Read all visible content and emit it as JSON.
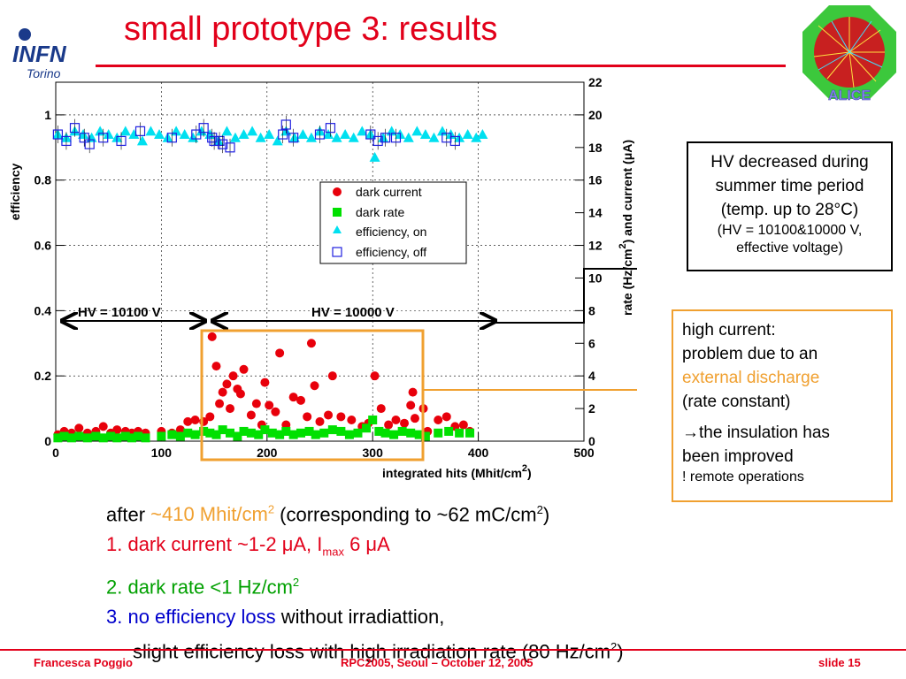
{
  "slide": {
    "title": "small prototype 3: results",
    "footer_left": "Francesca Poggio",
    "footer_center": "RPC2005, Seoul – October 12, 2005",
    "footer_right": "slide 15",
    "logo_infn_text": "INFN",
    "logo_infn_sub": "Torino",
    "logo_alice_text": "ALICE"
  },
  "boxes": {
    "hv_note_line1": "HV decreased during",
    "hv_note_line2": "summer time period",
    "hv_note_line3": "(temp. up to 28°C)",
    "hv_note_line4": "(HV = 10100&10000 V,",
    "hv_note_line5": "effective voltage)",
    "current_line1": "high current:",
    "current_line2": "problem due to an",
    "current_line3": "external discharge",
    "current_line4": "(rate constant)",
    "current_line5": "→the insulation has",
    "current_line6": "been improved",
    "current_line7": "! remote operations"
  },
  "bullets": {
    "after_prefix": "after ",
    "after_value": "~410 Mhit/cm",
    "after_value_sup": "2",
    "after_suffix": " (corresponding to ~62 mC/cm",
    "after_suffix_sup": "2",
    "after_end": ")",
    "b1_prefix": "1. dark current ~1-2 μA, I",
    "b1_sub": "max",
    "b1_suffix": " 6 μA",
    "b2_text": "2. dark rate <1 Hz/cm",
    "b2_sup": "2",
    "b3_colored": "3. no efficiency loss",
    "b3_rest": " without irradiattion,",
    "b4_text": "slight efficiency loss with high irradiation rate (80 Hz/cm",
    "b4_sup": "2",
    "b4_end": ")"
  },
  "chart_data": {
    "type": "scatter",
    "xlabel": "integrated hits (Mhit/cm",
    "xlabel_sup": "2",
    "xlabel_end": ")",
    "ylabel_left": "efficiency",
    "ylabel_right": "rate (Hz/cm",
    "ylabel_right_sup": "2",
    "ylabel_right_end": ") and current (μA)",
    "xlim": [
      0,
      500
    ],
    "ylim_left": [
      0,
      1.1
    ],
    "ylim_right": [
      0,
      22
    ],
    "x_ticks": [
      "0",
      "100",
      "200",
      "300",
      "400",
      "500"
    ],
    "y_left_ticks": [
      "0",
      "0.2",
      "0.4",
      "0.6",
      "0.8",
      "1"
    ],
    "y_right_ticks": [
      "0",
      "2",
      "4",
      "6",
      "8",
      "10",
      "12",
      "14",
      "16",
      "18",
      "20",
      "22"
    ],
    "annotations": {
      "hv1": "HV = 10100 V",
      "hv2": "HV = 10000 V"
    },
    "legend": {
      "placement": "center-right",
      "entries": [
        "dark current",
        "dark rate",
        "efficiency, on",
        "efficiency, off"
      ]
    },
    "colors": {
      "dark_current": "#e8000b",
      "dark_rate": "#00e000",
      "eff_on": "#00e0f0",
      "eff_off": "#2020e0",
      "highlight": "#f0a030"
    },
    "series": [
      {
        "name": "dark current",
        "axis": "right",
        "points": [
          [
            2,
            0.4
          ],
          [
            8,
            0.6
          ],
          [
            15,
            0.5
          ],
          [
            22,
            0.8
          ],
          [
            30,
            0.5
          ],
          [
            38,
            0.6
          ],
          [
            45,
            0.9
          ],
          [
            52,
            0.5
          ],
          [
            58,
            0.7
          ],
          [
            66,
            0.6
          ],
          [
            72,
            0.5
          ],
          [
            78,
            0.6
          ],
          [
            85,
            0.5
          ],
          [
            100,
            0.6
          ],
          [
            110,
            0.5
          ],
          [
            118,
            0.7
          ],
          [
            125,
            1.2
          ],
          [
            132,
            1.3
          ],
          [
            140,
            1.2
          ],
          [
            146,
            1.5
          ],
          [
            148,
            6.4
          ],
          [
            152,
            4.6
          ],
          [
            155,
            2.3
          ],
          [
            158,
            3.0
          ],
          [
            162,
            3.5
          ],
          [
            165,
            2.0
          ],
          [
            168,
            4.0
          ],
          [
            172,
            3.2
          ],
          [
            175,
            2.9
          ],
          [
            178,
            4.4
          ],
          [
            185,
            1.6
          ],
          [
            190,
            2.3
          ],
          [
            195,
            1.0
          ],
          [
            198,
            3.6
          ],
          [
            202,
            2.2
          ],
          [
            208,
            1.8
          ],
          [
            212,
            5.4
          ],
          [
            218,
            1.0
          ],
          [
            225,
            2.7
          ],
          [
            232,
            2.5
          ],
          [
            238,
            1.5
          ],
          [
            242,
            6.0
          ],
          [
            245,
            3.4
          ],
          [
            250,
            1.2
          ],
          [
            258,
            1.6
          ],
          [
            262,
            4.0
          ],
          [
            270,
            1.5
          ],
          [
            280,
            1.3
          ],
          [
            290,
            0.9
          ],
          [
            296,
            1.1
          ],
          [
            302,
            4.0
          ],
          [
            308,
            2.0
          ],
          [
            315,
            1.0
          ],
          [
            322,
            1.3
          ],
          [
            330,
            1.1
          ],
          [
            336,
            2.2
          ],
          [
            338,
            3.0
          ],
          [
            340,
            1.4
          ],
          [
            348,
            2.0
          ],
          [
            352,
            0.6
          ],
          [
            362,
            1.3
          ],
          [
            370,
            1.5
          ],
          [
            378,
            0.9
          ],
          [
            386,
            1.0
          ],
          [
            392,
            0.6
          ]
        ]
      },
      {
        "name": "dark rate",
        "axis": "right",
        "points": [
          [
            2,
            0.2
          ],
          [
            8,
            0.3
          ],
          [
            15,
            0.2
          ],
          [
            22,
            0.3
          ],
          [
            30,
            0.2
          ],
          [
            38,
            0.3
          ],
          [
            45,
            0.2
          ],
          [
            52,
            0.3
          ],
          [
            58,
            0.2
          ],
          [
            66,
            0.3
          ],
          [
            72,
            0.2
          ],
          [
            78,
            0.3
          ],
          [
            85,
            0.2
          ],
          [
            100,
            0.3
          ],
          [
            110,
            0.4
          ],
          [
            118,
            0.3
          ],
          [
            125,
            0.5
          ],
          [
            132,
            0.4
          ],
          [
            140,
            0.6
          ],
          [
            146,
            0.5
          ],
          [
            152,
            0.4
          ],
          [
            158,
            0.7
          ],
          [
            165,
            0.5
          ],
          [
            172,
            0.3
          ],
          [
            178,
            0.6
          ],
          [
            185,
            0.5
          ],
          [
            192,
            0.4
          ],
          [
            198,
            0.7
          ],
          [
            205,
            0.5
          ],
          [
            212,
            0.4
          ],
          [
            218,
            0.6
          ],
          [
            225,
            0.4
          ],
          [
            232,
            0.5
          ],
          [
            240,
            0.6
          ],
          [
            246,
            0.4
          ],
          [
            254,
            0.5
          ],
          [
            262,
            0.7
          ],
          [
            270,
            0.6
          ],
          [
            278,
            0.4
          ],
          [
            286,
            0.5
          ],
          [
            294,
            0.8
          ],
          [
            300,
            1.3
          ],
          [
            306,
            0.6
          ],
          [
            312,
            0.5
          ],
          [
            320,
            0.4
          ],
          [
            328,
            0.6
          ],
          [
            336,
            0.5
          ],
          [
            344,
            0.4
          ],
          [
            350,
            0.3
          ],
          [
            362,
            0.5
          ],
          [
            372,
            0.6
          ],
          [
            382,
            0.5
          ],
          [
            392,
            0.5
          ]
        ]
      },
      {
        "name": "efficiency, on",
        "axis": "left",
        "points": [
          [
            2,
            0.94
          ],
          [
            10,
            0.93
          ],
          [
            18,
            0.95
          ],
          [
            26,
            0.94
          ],
          [
            34,
            0.93
          ],
          [
            42,
            0.95
          ],
          [
            50,
            0.94
          ],
          [
            58,
            0.93
          ],
          [
            66,
            0.95
          ],
          [
            74,
            0.94
          ],
          [
            82,
            0.92
          ],
          [
            90,
            0.95
          ],
          [
            98,
            0.94
          ],
          [
            106,
            0.93
          ],
          [
            114,
            0.95
          ],
          [
            122,
            0.94
          ],
          [
            130,
            0.93
          ],
          [
            138,
            0.95
          ],
          [
            146,
            0.94
          ],
          [
            154,
            0.92
          ],
          [
            162,
            0.95
          ],
          [
            170,
            0.93
          ],
          [
            178,
            0.94
          ],
          [
            186,
            0.95
          ],
          [
            194,
            0.93
          ],
          [
            202,
            0.94
          ],
          [
            210,
            0.92
          ],
          [
            218,
            0.95
          ],
          [
            226,
            0.93
          ],
          [
            234,
            0.94
          ],
          [
            242,
            0.93
          ],
          [
            250,
            0.95
          ],
          [
            258,
            0.94
          ],
          [
            266,
            0.93
          ],
          [
            274,
            0.94
          ],
          [
            282,
            0.93
          ],
          [
            290,
            0.95
          ],
          [
            298,
            0.94
          ],
          [
            302,
            0.87
          ],
          [
            310,
            0.93
          ],
          [
            318,
            0.95
          ],
          [
            326,
            0.94
          ],
          [
            334,
            0.93
          ],
          [
            342,
            0.95
          ],
          [
            350,
            0.94
          ],
          [
            358,
            0.93
          ],
          [
            366,
            0.95
          ],
          [
            374,
            0.94
          ],
          [
            382,
            0.93
          ],
          [
            390,
            0.94
          ],
          [
            398,
            0.93
          ],
          [
            404,
            0.94
          ]
        ]
      },
      {
        "name": "efficiency, off",
        "axis": "left",
        "points": [
          [
            2,
            0.94
          ],
          [
            10,
            0.92
          ],
          [
            18,
            0.96
          ],
          [
            27,
            0.93
          ],
          [
            32,
            0.91
          ],
          [
            45,
            0.93
          ],
          [
            62,
            0.92
          ],
          [
            80,
            0.95
          ],
          [
            110,
            0.93
          ],
          [
            133,
            0.94
          ],
          [
            140,
            0.96
          ],
          [
            148,
            0.93
          ],
          [
            150,
            0.92
          ],
          [
            155,
            0.92
          ],
          [
            158,
            0.91
          ],
          [
            165,
            0.9
          ],
          [
            215,
            0.94
          ],
          [
            218,
            0.97
          ],
          [
            225,
            0.93
          ],
          [
            250,
            0.94
          ],
          [
            260,
            0.96
          ],
          [
            298,
            0.94
          ],
          [
            305,
            0.92
          ],
          [
            312,
            0.93
          ],
          [
            322,
            0.93
          ],
          [
            370,
            0.93
          ],
          [
            378,
            0.92
          ]
        ]
      }
    ]
  }
}
